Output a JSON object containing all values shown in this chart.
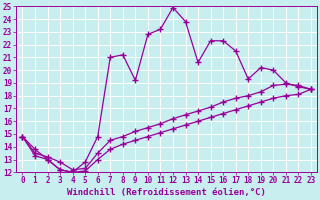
{
  "xlabel": "Windchill (Refroidissement éolien,°C)",
  "bg_color": "#c8eef0",
  "line_color": "#990099",
  "grid_color": "#ffffff",
  "xlim": [
    -0.5,
    23.5
  ],
  "ylim": [
    12,
    25
  ],
  "xticks": [
    0,
    1,
    2,
    3,
    4,
    5,
    6,
    7,
    8,
    9,
    10,
    11,
    12,
    13,
    14,
    15,
    16,
    17,
    18,
    19,
    20,
    21,
    22,
    23
  ],
  "yticks": [
    12,
    13,
    14,
    15,
    16,
    17,
    18,
    19,
    20,
    21,
    22,
    23,
    24,
    25
  ],
  "line1_x": [
    0,
    1,
    2,
    3,
    4,
    5,
    6,
    7,
    8,
    9,
    10,
    11,
    12,
    13,
    14,
    15,
    16,
    17,
    18,
    19,
    20,
    21,
    22,
    23
  ],
  "line1_y": [
    14.8,
    13.8,
    13.0,
    12.2,
    12.0,
    12.8,
    14.8,
    21.0,
    21.2,
    19.2,
    22.8,
    23.2,
    24.9,
    23.8,
    20.6,
    22.3,
    22.3,
    21.5,
    19.3,
    20.2,
    20.0,
    19.0,
    18.7,
    18.5
  ],
  "line2_x": [
    0,
    1,
    2,
    3,
    4,
    5,
    6,
    7,
    8,
    9,
    10,
    11,
    12,
    13,
    14,
    15,
    16,
    17,
    18,
    19,
    20,
    21,
    22,
    23
  ],
  "line2_y": [
    14.8,
    13.5,
    13.2,
    12.8,
    12.2,
    12.3,
    13.5,
    14.5,
    14.8,
    15.2,
    15.5,
    15.8,
    16.2,
    16.5,
    16.8,
    17.1,
    17.5,
    17.8,
    18.0,
    18.3,
    18.8,
    18.9,
    18.8,
    18.5
  ],
  "line3_x": [
    0,
    1,
    2,
    3,
    4,
    5,
    6,
    7,
    8,
    9,
    10,
    11,
    12,
    13,
    14,
    15,
    16,
    17,
    18,
    19,
    20,
    21,
    22,
    23
  ],
  "line3_y": [
    14.8,
    13.3,
    13.0,
    12.2,
    12.0,
    12.1,
    13.0,
    13.8,
    14.2,
    14.5,
    14.8,
    15.1,
    15.4,
    15.7,
    16.0,
    16.3,
    16.6,
    16.9,
    17.2,
    17.5,
    17.8,
    18.0,
    18.1,
    18.5
  ],
  "marker": "+",
  "markersize": 4,
  "linewidth": 0.9,
  "tick_fontsize": 5.5,
  "label_fontsize": 6.5
}
